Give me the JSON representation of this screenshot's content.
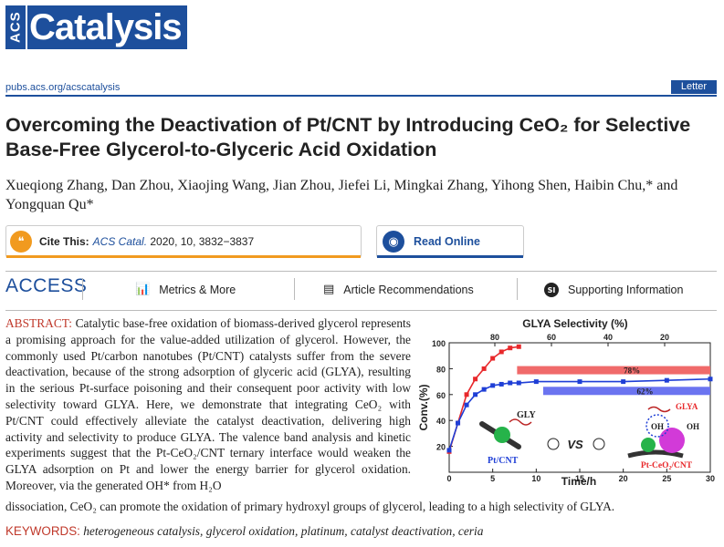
{
  "journal": {
    "acs": "ACS",
    "name": "Catalysis"
  },
  "url": "pubs.acs.org/acscatalysis",
  "article_type": "Letter",
  "title": "Overcoming the Deactivation of Pt/CNT by Introducing CeO₂ for Selective Base-Free Glycerol-to-Glyceric Acid Oxidation",
  "authors": "Xueqiong Zhang, Dan Zhou, Xiaojing Wang, Jian Zhou, Jiefei Li, Mingkai Zhang, Yihong Shen, Haibin Chu,* and Yongquan Qu*",
  "cite": {
    "label": "Cite This:",
    "journal": "ACS Catal.",
    "ref": "2020, 10, 3832−3837"
  },
  "read_online": "Read Online",
  "access": {
    "label": "ACCESS",
    "items": [
      {
        "icon": "metrics-icon",
        "label": "Metrics & More"
      },
      {
        "icon": "article-icon",
        "label": "Article Recommendations"
      },
      {
        "icon": "si-icon",
        "label": "Supporting Information",
        "badge": "SI"
      }
    ]
  },
  "abstract": {
    "label": "ABSTRACT:",
    "text": " Catalytic base-free oxidation of biomass-derived glycerol represents a promising approach for the value-added utilization of glycerol. However, the commonly used Pt/carbon nanotubes (Pt/CNT) catalysts suffer from the severe deactivation, because of the strong adsorption of glyceric acid (GLYA), resulting in the serious Pt-surface poisoning and their consequent poor activity with low selectivity toward GLYA. Here, we demonstrate that integrating CeO₂ with Pt/CNT could effectively alleviate the catalyst deactivation, delivering high activity and selectivity to produce GLYA. The valence band analysis and kinetic experiments suggest that the Pt-CeO₂/CNT ternary interface would weaken the GLYA adsorption on Pt and lower the energy barrier for glycerol oxidation. Moreover, via the generated OH* from H₂O",
    "continuation": "dissociation, CeO₂ can promote the oxidation of primary hydroxyl groups of glycerol, leading to a high selectivity of GLYA."
  },
  "keywords": {
    "label": "KEYWORDS:",
    "list": "heterogeneous catalysis, glycerol oxidation, platinum, catalyst deactivation, ceria"
  },
  "colors": {
    "brand": "#1d4f9c",
    "cite_accent": "#f19a1f",
    "abstract_label": "#c0392b"
  },
  "chart_data": {
    "type": "line",
    "top_axis_label": "GLYA Selectivity (%)",
    "top_ticks": [
      "80",
      "60",
      "40",
      "20"
    ],
    "xlabel": "Time/h",
    "ylabel": "Conv.(%)",
    "xlim": [
      0,
      30
    ],
    "ylim": [
      0,
      100
    ],
    "x_ticks": [
      0,
      5,
      10,
      15,
      20,
      25,
      30
    ],
    "y_ticks": [
      20,
      40,
      60,
      80,
      100
    ],
    "series": [
      {
        "color": "#e8282b",
        "x": [
          0,
          1,
          2,
          3,
          4,
          5,
          6,
          7,
          8
        ],
        "y": [
          16,
          38,
          60,
          72,
          80,
          88,
          93,
          96,
          97
        ]
      },
      {
        "color": "#1f3fd6",
        "x": [
          0,
          1,
          2,
          3,
          4,
          5,
          6,
          7,
          8,
          10,
          15,
          20,
          25,
          30
        ],
        "y": [
          17,
          38,
          52,
          60,
          64,
          67,
          68,
          69,
          69,
          70,
          70,
          70,
          71,
          72
        ]
      }
    ],
    "bars": [
      {
        "label": "78%",
        "color": "#f06a6a",
        "top_value": 78
      },
      {
        "label": "62%",
        "color": "#6b74f0",
        "top_value": 62
      }
    ],
    "labels": {
      "gly": "GLY",
      "glya": "GLYA",
      "oh": "OH",
      "pt_cnt": "Pt/CNT",
      "pt_ceo2_cnt": "Pt-CeO₂/CNT",
      "vs": "VS"
    }
  }
}
